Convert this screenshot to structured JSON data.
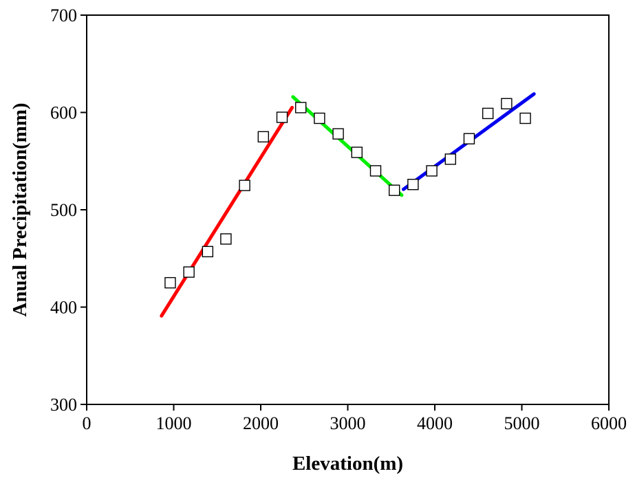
{
  "chart_data": {
    "type": "scatter",
    "title": "",
    "xlabel": "Elevation(m)",
    "ylabel": "Anual Precipitation(mm)",
    "xlim": [
      0,
      6000
    ],
    "ylim": [
      300,
      700
    ],
    "xticks": [
      "0",
      "1000",
      "2000",
      "3000",
      "4000",
      "5000",
      "6000"
    ],
    "yticks": [
      "300",
      "400",
      "500",
      "600",
      "700"
    ],
    "grid": false,
    "legend": "none",
    "points": {
      "marker": "open-square",
      "color": "#000000",
      "x": [
        960,
        1175,
        1390,
        1600,
        1815,
        2030,
        2245,
        2460,
        2675,
        2890,
        3105,
        3320,
        3535,
        3750,
        3965,
        4180,
        4395,
        4610,
        4825,
        5040
      ],
      "y": [
        425,
        436,
        457,
        470,
        525,
        575,
        595,
        605,
        594,
        578,
        559,
        540,
        520,
        526,
        540,
        552,
        573,
        599,
        609,
        594
      ]
    },
    "fit_lines": [
      {
        "color": "#ff0000",
        "x": [
          860,
          2360
        ],
        "y": [
          391,
          605
        ]
      },
      {
        "color": "#00ee00",
        "x": [
          2370,
          3620
        ],
        "y": [
          616,
          515
        ]
      },
      {
        "color": "#0000ee",
        "x": [
          3640,
          5140
        ],
        "y": [
          521,
          619
        ]
      }
    ]
  }
}
